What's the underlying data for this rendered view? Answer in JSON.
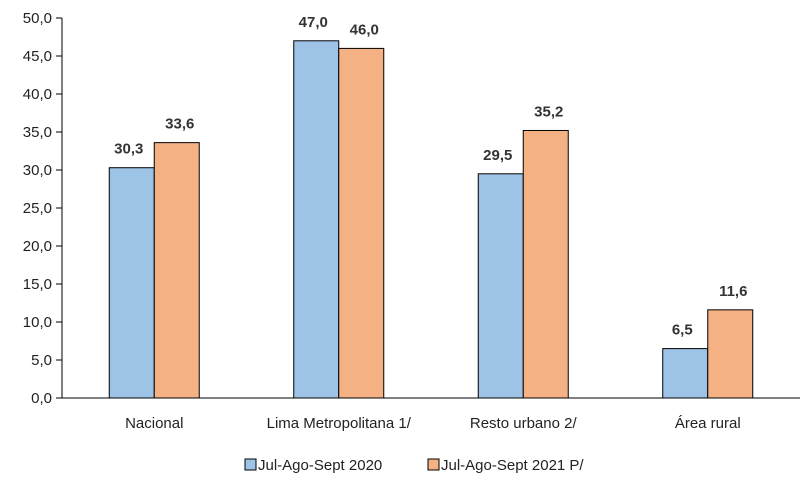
{
  "chart_data": {
    "type": "bar",
    "title": "",
    "xlabel": "",
    "ylabel": "",
    "ylim": [
      0,
      50
    ],
    "y_ticks": [
      0,
      5,
      10,
      15,
      20,
      25,
      30,
      35,
      40,
      45,
      50
    ],
    "y_tick_labels": [
      "0,0",
      "5,0",
      "10,0",
      "15,0",
      "20,0",
      "25,0",
      "30,0",
      "35,0",
      "40,0",
      "45,0",
      "50,0"
    ],
    "grid": false,
    "legend_position": "bottom",
    "categories": [
      "Nacional",
      "Lima Metropolitana 1/",
      "Resto urbano 2/",
      "Área rural"
    ],
    "series": [
      {
        "name": "Jul-Ago-Sept 2020",
        "color": "#9dc3e6",
        "values": [
          30.3,
          47.0,
          29.5,
          6.5
        ],
        "labels": [
          "30,3",
          "47,0",
          "29,5",
          "6,5"
        ]
      },
      {
        "name": "Jul-Ago-Sept 2021 P/",
        "color": "#f4b183",
        "values": [
          33.6,
          46.0,
          35.2,
          11.6
        ],
        "labels": [
          "33,6",
          "46,0",
          "35,2",
          "11,6"
        ]
      }
    ]
  }
}
